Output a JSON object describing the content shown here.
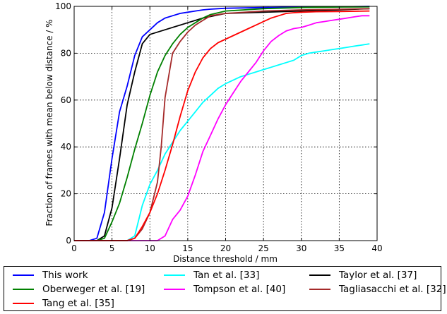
{
  "chart_data": {
    "type": "line",
    "title": "",
    "xlabel": "Distance threshold / mm",
    "ylabel": "Fraction of frames with mean below distance / %",
    "xlim": [
      0,
      40
    ],
    "ylim": [
      0,
      100
    ],
    "xticks": [
      0,
      5,
      10,
      15,
      20,
      25,
      30,
      35,
      40
    ],
    "yticks": [
      0,
      20,
      40,
      60,
      80,
      100
    ],
    "grid": true,
    "legend_position": "below",
    "series": [
      {
        "name": "This work",
        "color": "#0000ff",
        "x": [
          0,
          2,
          3,
          4,
          5,
          6,
          7,
          8,
          9,
          10,
          11,
          12,
          13,
          14,
          15,
          16,
          17,
          18,
          19,
          20,
          25,
          30,
          35,
          39
        ],
        "y": [
          0,
          0,
          1,
          12,
          35,
          55,
          66,
          79,
          87,
          90,
          93,
          95,
          96,
          97,
          97.5,
          98,
          98.5,
          98.8,
          99,
          99.2,
          99.5,
          99.7,
          99.8,
          100
        ]
      },
      {
        "name": "Tan et al. [33]",
        "color": "#00ffff",
        "x": [
          0,
          7,
          8,
          9,
          10,
          11,
          12,
          13,
          14,
          15,
          16,
          17,
          18,
          19,
          20,
          21,
          22,
          23,
          24,
          25,
          26,
          27,
          28,
          29,
          30,
          31,
          32,
          33,
          34,
          35,
          36,
          37,
          38,
          39
        ],
        "y": [
          0,
          0,
          2,
          15,
          24,
          30,
          37,
          42,
          47,
          51,
          55,
          59,
          62,
          65,
          67,
          68.5,
          70,
          71,
          72,
          73,
          74,
          75,
          76,
          77,
          79,
          80,
          80.5,
          81,
          81.5,
          82,
          82.5,
          83,
          83.5,
          84
        ]
      },
      {
        "name": "Taylor et al. [37]",
        "color": "#000000",
        "x": [
          0,
          3,
          4,
          5,
          6,
          7,
          8,
          9,
          10,
          12,
          15,
          17,
          20,
          25,
          30,
          35,
          39
        ],
        "y": [
          0,
          0,
          2,
          14,
          35,
          58,
          72,
          84,
          88,
          90,
          93,
          95,
          97,
          97.5,
          98,
          98.5,
          99
        ]
      },
      {
        "name": "Oberweger et al. [19]",
        "color": "#008000",
        "x": [
          0,
          3,
          4,
          5,
          6,
          7,
          8,
          9,
          10,
          11,
          12,
          13,
          14,
          15,
          16,
          17,
          18,
          20,
          25,
          30,
          35,
          39
        ],
        "y": [
          0,
          0,
          1,
          8,
          16,
          27,
          39,
          50,
          62,
          72,
          79,
          84,
          88,
          91,
          93,
          95,
          96.5,
          98,
          99,
          99.5,
          99.7,
          99.8
        ]
      },
      {
        "name": "Tompson et al. [40]",
        "color": "#ff00ff",
        "x": [
          0,
          11,
          12,
          13,
          14,
          15,
          16,
          17,
          18,
          19,
          20,
          21,
          22,
          23,
          24,
          25,
          26,
          27,
          28,
          29,
          30,
          31,
          32,
          33,
          34,
          35,
          36,
          37,
          38,
          39
        ],
        "y": [
          0,
          0,
          2,
          9,
          13,
          19,
          28,
          38,
          45,
          52,
          58,
          63,
          68,
          72,
          76,
          81,
          85,
          87.5,
          89.5,
          90.5,
          91,
          92,
          93,
          93.5,
          94,
          94.5,
          95,
          95.5,
          96,
          96
        ]
      },
      {
        "name": "Tagliasacchi et al. [32]",
        "color": "#a52a2a",
        "x": [
          0,
          7,
          8,
          9,
          10,
          11,
          11.5,
          12,
          13,
          14,
          15,
          16,
          17,
          18,
          20,
          25,
          30,
          35,
          39
        ],
        "y": [
          0,
          0,
          1,
          5,
          12,
          25,
          40,
          61,
          80,
          85,
          89,
          92,
          94,
          96,
          97,
          98,
          98.5,
          98.8,
          99
        ]
      },
      {
        "name": "Tang et al. [35]",
        "color": "#ff0000",
        "x": [
          0,
          7,
          8,
          9,
          10,
          11,
          12,
          13,
          14,
          15,
          16,
          17,
          18,
          19,
          20,
          21,
          22,
          23,
          24,
          25,
          26,
          27,
          28,
          29,
          30,
          32,
          35,
          39
        ],
        "y": [
          0,
          0,
          1,
          6,
          12,
          20,
          30,
          41,
          53,
          64,
          72,
          78,
          82,
          84.5,
          86,
          87.5,
          89,
          90.5,
          92,
          93.5,
          95,
          96,
          97,
          97.3,
          97.5,
          97.7,
          97.8,
          98
        ]
      }
    ]
  },
  "legend": {
    "items": [
      {
        "label": "This work",
        "color": "#0000ff"
      },
      {
        "label": "Tan et al. [33]",
        "color": "#00ffff"
      },
      {
        "label": "Taylor et al. [37]",
        "color": "#000000"
      },
      {
        "label": "Oberweger et al. [19]",
        "color": "#008000"
      },
      {
        "label": "Tompson et al. [40]",
        "color": "#ff00ff"
      },
      {
        "label": "Tagliasacchi et al. [32]",
        "color": "#a52a2a"
      },
      {
        "label": "Tang et al. [35]",
        "color": "#ff0000"
      }
    ]
  }
}
